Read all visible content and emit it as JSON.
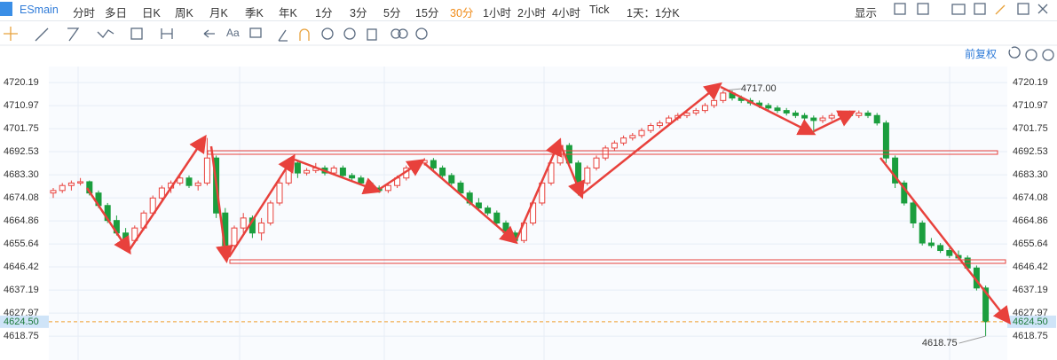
{
  "toolbar": {
    "symbol": "ESmain",
    "periods": [
      "分时",
      "多日",
      "日K",
      "周K",
      "月K",
      "季K",
      "年K",
      "1分",
      "3分",
      "5分",
      "15分",
      "30分",
      "1小时",
      "2小时",
      "4小时",
      "Tick"
    ],
    "active": 11,
    "range": "1天：1分K",
    "display": "显示",
    "font_tool": "Aa"
  },
  "adjust": "前复权",
  "chart_data": {
    "type": "candlestick",
    "up_color": "#e8413c",
    "down_color": "#1b9e3e",
    "ylim": [
      4609.2,
      4726.6
    ],
    "yticks": [
      4720.19,
      4710.97,
      4701.75,
      4692.53,
      {
        "value": 4683.3,
        "label": "4683.30"
      },
      4674.08,
      4664.86,
      4655.64,
      4646.42,
      4637.19,
      4627.97,
      4618.75
    ],
    "grid": true,
    "last_price": {
      "value": 4624.5,
      "label": "4624.50"
    },
    "high_label": "4717.00",
    "low_label": "4618.75",
    "ohlc": [
      [
        4676,
        4678,
        4674,
        4677
      ],
      [
        4677,
        4680,
        4676,
        4679
      ],
      [
        4679,
        4681,
        4677,
        4680
      ],
      [
        4680,
        4682,
        4679,
        4680.5
      ],
      [
        4680.5,
        4681,
        4675,
        4676
      ],
      [
        4676,
        4677,
        4670,
        4671
      ],
      [
        4671,
        4672,
        4664,
        4665
      ],
      [
        4665,
        4667,
        4659,
        4660
      ],
      [
        4660,
        4662,
        4653,
        4657
      ],
      [
        4657,
        4663,
        4656,
        4662
      ],
      [
        4662,
        4669,
        4661,
        4668
      ],
      [
        4668,
        4675,
        4667,
        4674
      ],
      [
        4674,
        4679,
        4673,
        4678
      ],
      [
        4678,
        4681,
        4676,
        4680
      ],
      [
        4680,
        4683,
        4679,
        4682
      ],
      [
        4682,
        4683,
        4678,
        4679
      ],
      [
        4679,
        4681,
        4677,
        4680
      ],
      [
        4680,
        4698,
        4679,
        4690
      ],
      [
        4690,
        4691,
        4666,
        4668
      ],
      [
        4668,
        4670,
        4649.6,
        4655
      ],
      [
        4655,
        4663,
        4654,
        4662
      ],
      [
        4662,
        4668,
        4660,
        4666
      ],
      [
        4666,
        4667,
        4658,
        4660
      ],
      [
        4660,
        4666,
        4657,
        4664
      ],
      [
        4664,
        4673,
        4663,
        4672
      ],
      [
        4672,
        4682,
        4671,
        4680
      ],
      [
        4680,
        4690,
        4679,
        4688
      ],
      [
        4688,
        4689,
        4682,
        4684
      ],
      [
        4684,
        4686,
        4683,
        4685
      ],
      [
        4685,
        4688,
        4684,
        4686
      ],
      [
        4686,
        4687,
        4683,
        4684
      ],
      [
        4684,
        4687,
        4683,
        4686
      ],
      [
        4686,
        4687,
        4682,
        4683
      ],
      [
        4683,
        4684,
        4681,
        4682
      ],
      [
        4682,
        4683,
        4679,
        4680
      ],
      [
        4680,
        4681,
        4677,
        4678
      ],
      [
        4678,
        4679,
        4676,
        4677
      ],
      [
        4677,
        4680,
        4676,
        4679
      ],
      [
        4679,
        4683,
        4678,
        4682
      ],
      [
        4682,
        4687,
        4681,
        4686
      ],
      [
        4686,
        4689,
        4685,
        4688
      ],
      [
        4688,
        4690,
        4687,
        4689
      ],
      [
        4689,
        4690,
        4685,
        4686
      ],
      [
        4686,
        4687,
        4682,
        4683
      ],
      [
        4683,
        4684,
        4679,
        4680
      ],
      [
        4680,
        4681,
        4675,
        4676
      ],
      [
        4676,
        4677,
        4671,
        4672
      ],
      [
        4672,
        4674,
        4669,
        4670
      ],
      [
        4670,
        4671,
        4667,
        4668
      ],
      [
        4668,
        4669,
        4663,
        4664
      ],
      [
        4664,
        4665,
        4659,
        4660
      ],
      [
        4660,
        4661,
        4656.7,
        4657
      ],
      [
        4657,
        4665,
        4656,
        4664
      ],
      [
        4664,
        4673,
        4663,
        4672
      ],
      [
        4672,
        4681,
        4671,
        4680
      ],
      [
        4680,
        4689,
        4679,
        4688
      ],
      [
        4688,
        4696.4,
        4687,
        4695
      ],
      [
        4695,
        4696,
        4687,
        4688
      ],
      [
        4688,
        4689,
        4675,
        4680
      ],
      [
        4680,
        4687,
        4679,
        4686
      ],
      [
        4686,
        4691,
        4685,
        4690
      ],
      [
        4690,
        4695,
        4689,
        4694
      ],
      [
        4694,
        4697,
        4693,
        4696
      ],
      [
        4696,
        4699,
        4695,
        4698
      ],
      [
        4698,
        4700,
        4697,
        4699
      ],
      [
        4699,
        4702,
        4698,
        4701
      ],
      [
        4701,
        4704,
        4700,
        4703
      ],
      [
        4703,
        4705,
        4702,
        4704
      ],
      [
        4704,
        4707,
        4703,
        4706
      ],
      [
        4706,
        4708,
        4705,
        4707
      ],
      [
        4707,
        4709,
        4706,
        4708
      ],
      [
        4708,
        4710,
        4707,
        4709
      ],
      [
        4709,
        4712,
        4708,
        4711
      ],
      [
        4711,
        4714,
        4710,
        4713
      ],
      [
        4713,
        4717,
        4712,
        4716
      ],
      [
        4716,
        4717,
        4713,
        4714
      ],
      [
        4714,
        4715,
        4712,
        4713
      ],
      [
        4713,
        4714,
        4711,
        4712
      ],
      [
        4712,
        4713,
        4710,
        4711
      ],
      [
        4711,
        4712,
        4709,
        4710
      ],
      [
        4710,
        4711,
        4708,
        4709
      ],
      [
        4709,
        4710,
        4707,
        4708
      ],
      [
        4708,
        4709,
        4706,
        4707
      ],
      [
        4707,
        4708,
        4705,
        4706
      ],
      [
        4706,
        4707,
        4700,
        4705
      ],
      [
        4705,
        4707,
        4704,
        4706
      ],
      [
        4706,
        4708,
        4705,
        4707
      ],
      [
        4707,
        4709,
        4706,
        4708
      ],
      [
        4708,
        4709,
        4706,
        4707
      ],
      [
        4707,
        4709,
        4706,
        4708
      ],
      [
        4708,
        4709,
        4706,
        4707
      ],
      [
        4707,
        4708,
        4703,
        4704
      ],
      [
        4704,
        4705,
        4688,
        4690
      ],
      [
        4690,
        4691,
        4678,
        4680
      ],
      [
        4680,
        4681,
        4671,
        4672
      ],
      [
        4672,
        4673,
        4662,
        4664
      ],
      [
        4664,
        4665,
        4655,
        4656
      ],
      [
        4656,
        4658,
        4654,
        4655
      ],
      [
        4655,
        4656,
        4652,
        4653
      ],
      [
        4653,
        4654,
        4650,
        4651
      ],
      [
        4651,
        4653,
        4649,
        4650
      ],
      [
        4650,
        4651,
        4645,
        4646
      ],
      [
        4646,
        4647,
        4637,
        4638
      ],
      [
        4638,
        4639,
        4618.75,
        4624.5
      ]
    ]
  }
}
